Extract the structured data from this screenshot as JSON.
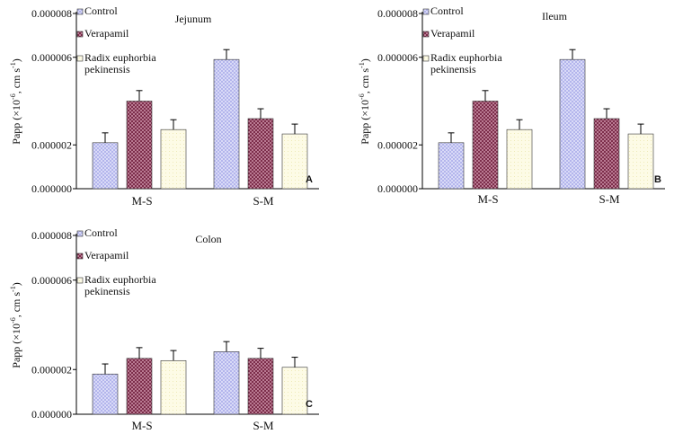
{
  "colors": {
    "Control": "#c7c8f2",
    "Verapamil": "#9a4a66",
    "Radix euphorbia pekinensis": "#fbf8d4"
  },
  "yaxis_label": {
    "main": "Papp (×10",
    "exp": "-6",
    "mid": ", cm s",
    "exp2": "-1",
    "end": ")"
  },
  "chart_data": [
    {
      "type": "bar",
      "panel": "A",
      "title": "Jejunum",
      "categories": [
        "M-S",
        "S-M"
      ],
      "ylim": [
        0,
        8e-06
      ],
      "yticks": [
        "0.000008",
        "0.000006",
        "0.000002",
        "0.000000"
      ],
      "ytick_values": [
        8e-06,
        6e-06,
        2e-06,
        0.0
      ],
      "grid": false,
      "legend_position": "top-left",
      "series": [
        {
          "name": "Control",
          "values": [
            2.1e-06,
            5.9e-06
          ],
          "errors": [
            4.5e-07,
            4.5e-07
          ]
        },
        {
          "name": "Verapamil",
          "values": [
            4e-06,
            3.2e-06
          ],
          "errors": [
            4.8e-07,
            4.5e-07
          ]
        },
        {
          "name": "Radix euphorbia pekinensis",
          "values": [
            2.7e-06,
            2.5e-06
          ],
          "errors": [
            4.5e-07,
            4.5e-07
          ]
        }
      ]
    },
    {
      "type": "bar",
      "panel": "B",
      "title": "Ileum",
      "categories": [
        "M-S",
        "S-M"
      ],
      "ylim": [
        0,
        8e-06
      ],
      "yticks": [
        "0.000008",
        "0.000006",
        "0.000002",
        "0.000000"
      ],
      "ytick_values": [
        8e-06,
        6e-06,
        2e-06,
        0.0
      ],
      "grid": false,
      "legend_position": "top-left",
      "series": [
        {
          "name": "Control",
          "values": [
            2.1e-06,
            5.9e-06
          ],
          "errors": [
            4.5e-07,
            4.5e-07
          ]
        },
        {
          "name": "Verapamil",
          "values": [
            4e-06,
            3.2e-06
          ],
          "errors": [
            4.8e-07,
            4.5e-07
          ]
        },
        {
          "name": "Radix euphorbia pekinensis",
          "values": [
            2.7e-06,
            2.5e-06
          ],
          "errors": [
            4.5e-07,
            4.5e-07
          ]
        }
      ]
    },
    {
      "type": "bar",
      "panel": "C",
      "title": "Colon",
      "categories": [
        "M-S",
        "S-M"
      ],
      "ylim": [
        0,
        8e-06
      ],
      "yticks": [
        "0.000008",
        "0.000006",
        "0.000002",
        "0.000000"
      ],
      "ytick_values": [
        8e-06,
        6e-06,
        2e-06,
        0.0
      ],
      "grid": false,
      "legend_position": "top-left",
      "series": [
        {
          "name": "Control",
          "values": [
            1.8e-06,
            2.8e-06
          ],
          "errors": [
            4.5e-07,
            4.5e-07
          ]
        },
        {
          "name": "Verapamil",
          "values": [
            2.5e-06,
            2.5e-06
          ],
          "errors": [
            4.8e-07,
            4.5e-07
          ]
        },
        {
          "name": "Radix euphorbia pekinensis",
          "values": [
            2.4e-06,
            2.1e-06
          ],
          "errors": [
            4.5e-07,
            4.5e-07
          ]
        }
      ]
    }
  ]
}
